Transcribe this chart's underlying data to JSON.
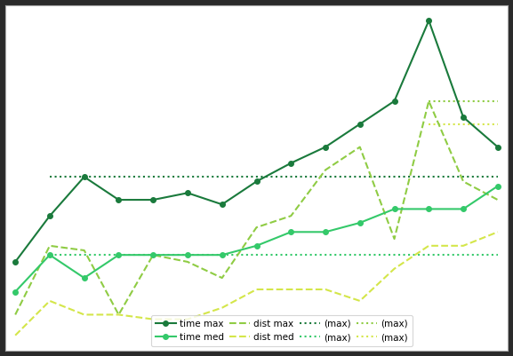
{
  "x": [
    1,
    2,
    3,
    4,
    5,
    6,
    7,
    8,
    9,
    10,
    11,
    12,
    13,
    14,
    15
  ],
  "time_max": [
    3.5,
    5.5,
    7.2,
    6.2,
    6.2,
    6.5,
    6.0,
    7.0,
    7.8,
    8.5,
    9.5,
    10.5,
    14.0,
    9.8,
    8.5
  ],
  "time_med": [
    2.2,
    3.8,
    2.8,
    3.8,
    3.8,
    3.8,
    3.8,
    4.2,
    4.8,
    4.8,
    5.2,
    5.8,
    5.8,
    5.8,
    6.8
  ],
  "dist_max": [
    1.2,
    4.2,
    4.0,
    1.2,
    3.8,
    3.5,
    2.8,
    5.0,
    5.5,
    7.5,
    8.5,
    4.5,
    10.5,
    7.0,
    6.2
  ],
  "dist_med": [
    0.3,
    1.8,
    1.2,
    1.2,
    1.0,
    1.0,
    1.5,
    2.3,
    2.3,
    2.3,
    1.8,
    3.2,
    4.2,
    4.2,
    4.8
  ],
  "time_max_hline_xstart": 2,
  "time_max_hline_y": 7.2,
  "time_med_hline_xstart": 2,
  "time_med_hline_y": 3.8,
  "dist_max_hline_xstart": 13,
  "dist_max_hline_y": 10.5,
  "dist_med_hline_xstart": 13,
  "dist_med_hline_y": 9.5,
  "color_time_max": "#1a7a3c",
  "color_time_med": "#34c96a",
  "color_dist_max": "#8fcc44",
  "color_dist_med": "#d4e64a",
  "bg_color": "#ffffff",
  "outer_bg": "#2a2a2a",
  "figsize": [
    5.77,
    4.01
  ],
  "dpi": 100
}
